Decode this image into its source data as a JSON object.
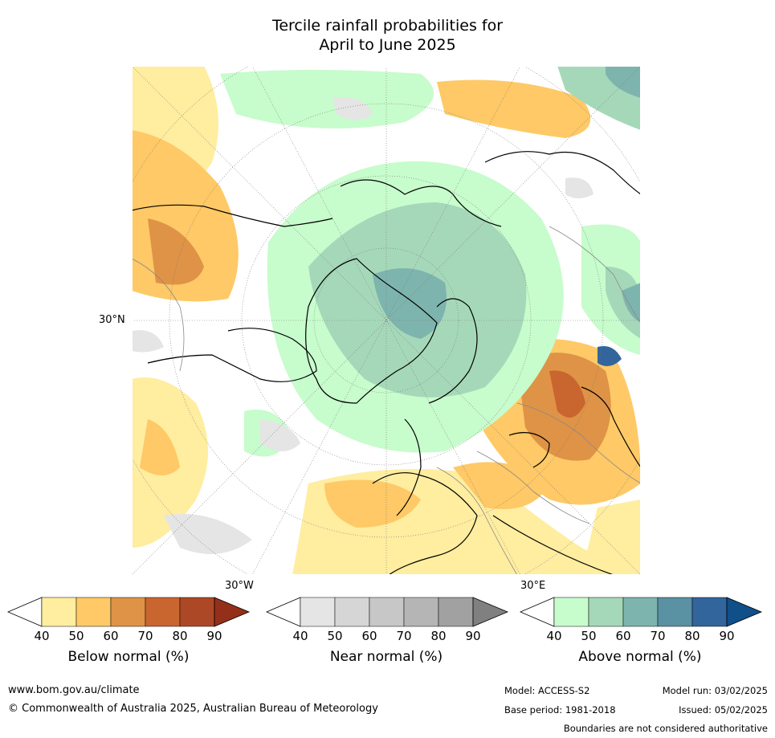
{
  "title_line1": "Tercile rainfall probabilities for",
  "title_line2": "April to June 2025",
  "map": {
    "lat_label": "30°N",
    "lon_labels": [
      "30°W",
      "30°E"
    ],
    "colors": {
      "below": [
        "#ffffff",
        "#ffeda0",
        "#fec966",
        "#df9346",
        "#c9652f",
        "#ad4826",
        "#943019"
      ],
      "near": [
        "#ffffff",
        "#e5e5e5",
        "#d6d6d6",
        "#c7c7c7",
        "#b5b5b5",
        "#a1a1a1",
        "#808080"
      ],
      "above": [
        "#ffffff",
        "#c7fccc",
        "#a5d8b9",
        "#7eb4ae",
        "#5a91a3",
        "#32659b",
        "#0f4f8a"
      ]
    }
  },
  "colorbars": [
    {
      "label": "Below normal (%)",
      "ticks": [
        "40",
        "50",
        "60",
        "70",
        "80",
        "90"
      ]
    },
    {
      "label": "Near normal (%)",
      "ticks": [
        "40",
        "50",
        "60",
        "70",
        "80",
        "90"
      ]
    },
    {
      "label": "Above normal (%)",
      "ticks": [
        "40",
        "50",
        "60",
        "70",
        "80",
        "90"
      ]
    }
  ],
  "footer": {
    "website": "www.bom.gov.au/climate",
    "copyright": "© Commonwealth of Australia 2025, Australian Bureau of Meteorology",
    "model": "Model: ACCESS-S2",
    "model_run": "Model run: 03/02/2025",
    "base_period": "Base period: 1981-2018",
    "issued": "Issued: 05/02/2025",
    "disclaimer": "Boundaries are not considered authoritative"
  }
}
